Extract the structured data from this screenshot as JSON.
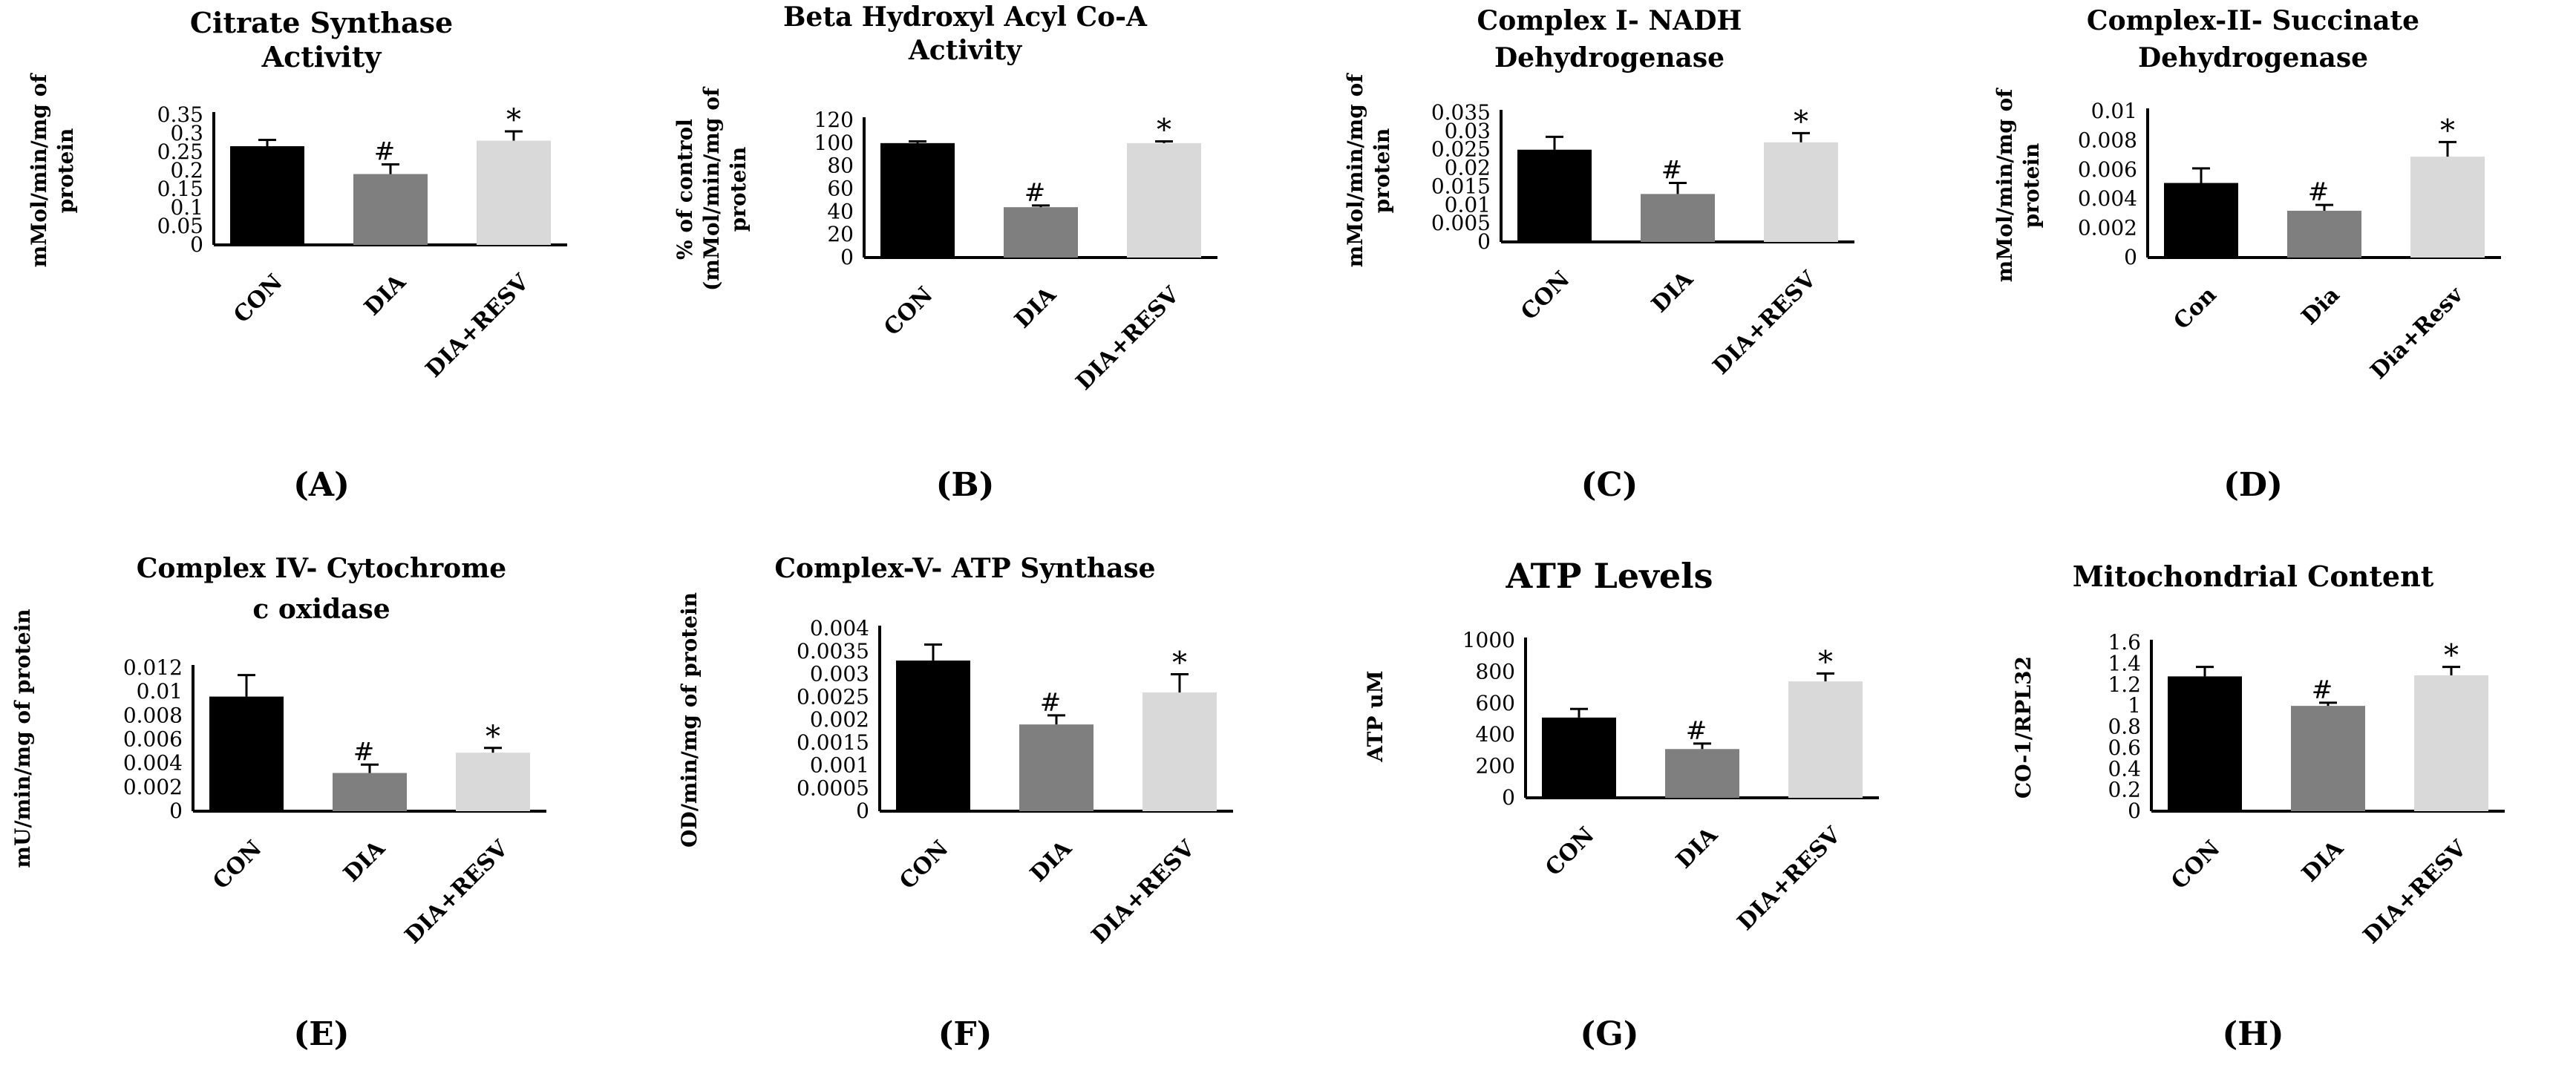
{
  "colors": {
    "con": "#000000",
    "dia": "#7f7f7f",
    "resv": "#d9d9d9",
    "axis": "#000000"
  },
  "chart_data": [
    {
      "type": "bar",
      "panel_label": "(A)",
      "title_lines": [
        "Citrate Synthase",
        "Activity"
      ],
      "ylabel_lines": [
        "mMol/min/mg of",
        "protein"
      ],
      "categories": [
        "CON",
        "DIA",
        "DIA+RESV"
      ],
      "values": [
        0.266,
        0.191,
        0.281
      ],
      "errors": [
        0.017,
        0.026,
        0.025
      ],
      "annotations": [
        "",
        "#",
        "*"
      ],
      "ylim": [
        0,
        0.35
      ],
      "yticks": [
        "0",
        "0.05",
        "0.1",
        "0.15",
        "0.2",
        "0.25",
        "0.3",
        "0.35"
      ]
    },
    {
      "type": "bar",
      "panel_label": "(B)",
      "title_lines": [
        "Beta Hydroxyl Acyl Co-A",
        "Activity"
      ],
      "ylabel_lines": [
        "% of control",
        "(mMol/min/mg of",
        "protein"
      ],
      "categories": [
        "CON",
        "DIA",
        "DIA+RESV"
      ],
      "values": [
        100,
        44,
        100
      ],
      "errors": [
        1.5,
        1.5,
        1.5
      ],
      "annotations": [
        "",
        "#",
        "*"
      ],
      "ylim": [
        0,
        120
      ],
      "yticks": [
        "0",
        "20",
        "40",
        "60",
        "80",
        "100",
        "120"
      ]
    },
    {
      "type": "bar",
      "panel_label": "(C)",
      "title_lines": [
        "Complex I- NADH",
        "Dehydrogenase"
      ],
      "ylabel_lines": [
        "mMol/min/mg of",
        "protein"
      ],
      "categories": [
        "CON",
        "DIA",
        "DIA+RESV"
      ],
      "values": [
        0.025,
        0.013,
        0.027
      ],
      "errors": [
        0.0035,
        0.003,
        0.0025
      ],
      "annotations": [
        "",
        "#",
        "*"
      ],
      "ylim": [
        0,
        0.035
      ],
      "yticks": [
        "0",
        "0.005",
        "0.01",
        "0.015",
        "0.02",
        "0.025",
        "0.03",
        "0.035"
      ]
    },
    {
      "type": "bar",
      "panel_label": "(D)",
      "title_lines": [
        "Complex-II- Succinate",
        "Dehydrogenase"
      ],
      "ylabel_lines": [
        "mMol/min/mg of",
        "protein"
      ],
      "categories": [
        "Con",
        "Dia",
        "Dia+Resv"
      ],
      "values": [
        0.0051,
        0.0032,
        0.0069
      ],
      "errors": [
        0.001,
        0.0004,
        0.001
      ],
      "annotations": [
        "",
        "#",
        "*"
      ],
      "ylim": [
        0,
        0.01
      ],
      "yticks": [
        "0",
        "0.002",
        "0.004",
        "0.006",
        "0.008",
        "0.01"
      ]
    },
    {
      "type": "bar",
      "panel_label": "(E)",
      "title_lines": [
        "Complex IV- Cytochrome",
        "c oxidase"
      ],
      "ylabel_lines": [
        "mU/min/mg of protein"
      ],
      "categories": [
        "CON",
        "DIA",
        "DIA+RESV"
      ],
      "values": [
        0.0096,
        0.0032,
        0.0049
      ],
      "errors": [
        0.0018,
        0.0007,
        0.0004
      ],
      "annotations": [
        "",
        "#",
        "*"
      ],
      "ylim": [
        0,
        0.012
      ],
      "yticks": [
        "0",
        "0.002",
        "0.004",
        "0.006",
        "0.008",
        "0.01",
        "0.012"
      ]
    },
    {
      "type": "bar",
      "panel_label": "(F)",
      "title_lines": [
        "Complex-V- ATP Synthase"
      ],
      "ylabel_lines": [
        "OD/min/mg of protein"
      ],
      "categories": [
        "CON",
        "DIA",
        "DIA+RESV"
      ],
      "values": [
        0.0033,
        0.0019,
        0.0026
      ],
      "errors": [
        0.00035,
        0.0002,
        0.0004
      ],
      "annotations": [
        "",
        "#",
        "*"
      ],
      "ylim": [
        0,
        0.004
      ],
      "yticks": [
        "0",
        "0.0005",
        "0.001",
        "0.0015",
        "0.002",
        "0.0025",
        "0.003",
        "0.0035",
        "0.004"
      ]
    },
    {
      "type": "bar",
      "panel_label": "(G)",
      "title_lines": [
        "ATP Levels"
      ],
      "ylabel_lines": [
        "ATP uM"
      ],
      "categories": [
        "CON",
        "DIA",
        "DIA+RESV"
      ],
      "values": [
        510,
        310,
        740
      ],
      "errors": [
        55,
        35,
        50
      ],
      "annotations": [
        "",
        "#",
        "*"
      ],
      "ylim": [
        0,
        1000
      ],
      "yticks": [
        "0",
        "200",
        "400",
        "600",
        "800",
        "1000"
      ]
    },
    {
      "type": "bar",
      "panel_label": "(H)",
      "title_lines": [
        "Mitochondrial Content"
      ],
      "ylabel_lines": [
        "CO-1/RPL32"
      ],
      "categories": [
        "CON",
        "DIA",
        "DIA+RESV"
      ],
      "values": [
        1.28,
        1.0,
        1.29
      ],
      "errors": [
        0.09,
        0.03,
        0.08
      ],
      "annotations": [
        "",
        "#",
        "*"
      ],
      "ylim": [
        0,
        1.6
      ],
      "yticks": [
        "0",
        "0.2",
        "0.4",
        "0.6",
        "0.8",
        "1",
        "1.2",
        "1.4",
        "1.6"
      ]
    }
  ]
}
